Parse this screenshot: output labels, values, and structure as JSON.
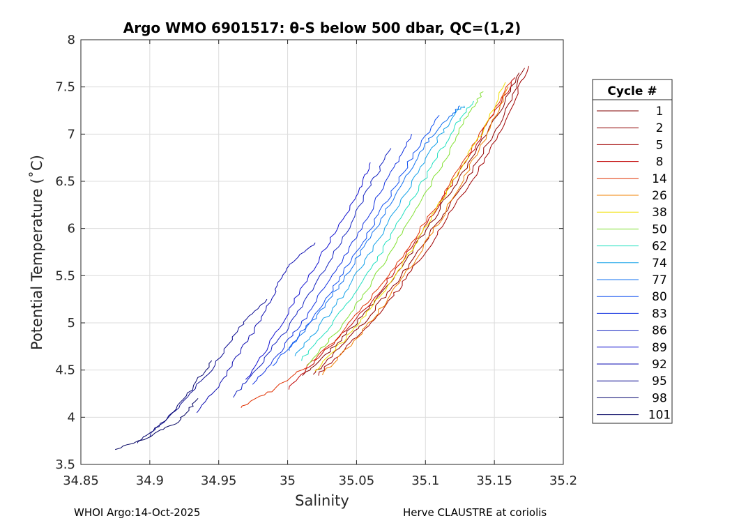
{
  "chart_data": {
    "type": "line",
    "title": "Argo WMO 6901517: θ-S below 500 dbar,  QC=(1,2)",
    "xlabel": "Salinity",
    "ylabel": "Potential Temperature (˚C)",
    "xlim": [
      34.85,
      35.2
    ],
    "ylim": [
      3.5,
      8
    ],
    "xticks": [
      34.85,
      34.9,
      34.95,
      35,
      35.05,
      35.1,
      35.15,
      35.2
    ],
    "xtick_labels": [
      "34.85",
      "34.9",
      "34.95",
      "35",
      "35.05",
      "35.1",
      "35.15",
      "35.2"
    ],
    "yticks": [
      3.5,
      4,
      4.5,
      5,
      5.5,
      6,
      6.5,
      7,
      7.5,
      8
    ],
    "ytick_labels": [
      "3.5",
      "4",
      "4.5",
      "5",
      "5.5",
      "6",
      "6.5",
      "7",
      "7.5",
      "8"
    ],
    "grid": true,
    "legend": {
      "title": "Cycle #",
      "placement": "outside-right",
      "entries": [
        {
          "label": "1",
          "color": "#800000"
        },
        {
          "label": "2",
          "color": "#8f0000"
        },
        {
          "label": "5",
          "color": "#a00000"
        },
        {
          "label": "8",
          "color": "#c00000"
        },
        {
          "label": "14",
          "color": "#e03000"
        },
        {
          "label": "26",
          "color": "#f08000"
        },
        {
          "label": "38",
          "color": "#f0e000"
        },
        {
          "label": "50",
          "color": "#80e030"
        },
        {
          "label": "62",
          "color": "#20e0c0"
        },
        {
          "label": "74",
          "color": "#10a0e8"
        },
        {
          "label": "77",
          "color": "#1070f0"
        },
        {
          "label": "80",
          "color": "#1050f0"
        },
        {
          "label": "83",
          "color": "#1030e0"
        },
        {
          "label": "86",
          "color": "#1020c0"
        },
        {
          "label": "89",
          "color": "#1010d0"
        },
        {
          "label": "92",
          "color": "#0a0ab0"
        },
        {
          "label": "95",
          "color": "#0a0a90"
        },
        {
          "label": "98",
          "color": "#050570"
        },
        {
          "label": "101",
          "color": "#000060"
        }
      ]
    },
    "series": [
      {
        "name": "1",
        "x": [
          35.012,
          35.03,
          35.05,
          35.07,
          35.09,
          35.11,
          35.13,
          35.15,
          35.168
        ],
        "y": [
          4.45,
          4.7,
          5.0,
          5.35,
          5.75,
          6.2,
          6.65,
          7.15,
          7.65
        ]
      },
      {
        "name": "2",
        "x": [
          35.018,
          35.035,
          35.055,
          35.075,
          35.095,
          35.115,
          35.135,
          35.155,
          35.172
        ],
        "y": [
          4.45,
          4.7,
          5.0,
          5.35,
          5.75,
          6.2,
          6.65,
          7.15,
          7.7
        ]
      },
      {
        "name": "5",
        "x": [
          35.022,
          35.04,
          35.06,
          35.08,
          35.1,
          35.12,
          35.14,
          35.158,
          35.175
        ],
        "y": [
          4.45,
          4.7,
          5.0,
          5.35,
          5.75,
          6.2,
          6.65,
          7.15,
          7.72
        ]
      },
      {
        "name": "8",
        "x": [
          35.0,
          35.02,
          35.045,
          35.065,
          35.085,
          35.105,
          35.125,
          35.145,
          35.165
        ],
        "y": [
          4.3,
          4.6,
          4.95,
          5.3,
          5.7,
          6.15,
          6.6,
          7.1,
          7.6
        ]
      },
      {
        "name": "14",
        "x": [
          34.965,
          34.99,
          35.015,
          35.04,
          35.065,
          35.09,
          35.115,
          35.14,
          35.162
        ],
        "y": [
          4.1,
          4.3,
          4.55,
          4.9,
          5.35,
          5.85,
          6.4,
          7.0,
          7.55
        ]
      },
      {
        "name": "26",
        "x": [
          35.025,
          35.045,
          35.065,
          35.085,
          35.105,
          35.125,
          35.145,
          35.16
        ],
        "y": [
          4.45,
          4.75,
          5.1,
          5.5,
          5.95,
          6.45,
          7.0,
          7.5
        ]
      },
      {
        "name": "38",
        "x": [
          35.02,
          35.04,
          35.06,
          35.08,
          35.1,
          35.12,
          35.14,
          35.158
        ],
        "y": [
          4.5,
          4.8,
          5.15,
          5.55,
          6.0,
          6.5,
          7.0,
          7.55
        ]
      },
      {
        "name": "50",
        "x": [
          35.015,
          35.035,
          35.055,
          35.075,
          35.095,
          35.115,
          35.13,
          35.142
        ],
        "y": [
          4.55,
          4.9,
          5.3,
          5.75,
          6.25,
          6.75,
          7.2,
          7.45
        ]
      },
      {
        "name": "62",
        "x": [
          35.01,
          35.03,
          35.05,
          35.07,
          35.09,
          35.11,
          35.125,
          35.135
        ],
        "y": [
          4.6,
          4.95,
          5.35,
          5.8,
          6.3,
          6.8,
          7.15,
          7.35
        ]
      },
      {
        "name": "74",
        "x": [
          35.005,
          35.025,
          35.045,
          35.065,
          35.085,
          35.105,
          35.12,
          35.128
        ],
        "y": [
          4.65,
          5.0,
          5.4,
          5.85,
          6.35,
          6.85,
          7.2,
          7.3
        ]
      },
      {
        "name": "77",
        "x": [
          35.0,
          35.02,
          35.04,
          35.06,
          35.08,
          35.1,
          35.115,
          35.125
        ],
        "y": [
          4.7,
          5.05,
          5.45,
          5.9,
          6.4,
          6.9,
          7.15,
          7.3
        ]
      },
      {
        "name": "80",
        "x": [
          34.99,
          35.01,
          35.03,
          35.05,
          35.07,
          35.09,
          35.11
        ],
        "y": [
          4.55,
          4.9,
          5.3,
          5.75,
          6.25,
          6.75,
          7.2
        ]
      },
      {
        "name": "83",
        "x": [
          34.975,
          34.995,
          35.015,
          35.035,
          35.055,
          35.075,
          35.09
        ],
        "y": [
          4.35,
          4.7,
          5.1,
          5.55,
          6.05,
          6.6,
          7.0
        ]
      },
      {
        "name": "86",
        "x": [
          34.96,
          34.98,
          35.0,
          35.02,
          35.04,
          35.06,
          35.075
        ],
        "y": [
          4.2,
          4.55,
          4.95,
          5.4,
          5.9,
          6.45,
          6.85
        ]
      },
      {
        "name": "89",
        "x": [
          34.97,
          34.99,
          35.01,
          35.03,
          35.05,
          35.06
        ],
        "y": [
          4.4,
          4.85,
          5.35,
          5.85,
          6.35,
          6.7
        ]
      },
      {
        "name": "92",
        "x": [
          34.935,
          34.955,
          34.975,
          34.99,
          35.0,
          35.02
        ],
        "y": [
          4.05,
          4.45,
          4.9,
          5.3,
          5.6,
          5.85
        ]
      },
      {
        "name": "95",
        "x": [
          34.9,
          34.92,
          34.945,
          34.965,
          34.985
        ],
        "y": [
          3.8,
          4.1,
          4.5,
          4.95,
          5.25
        ]
      },
      {
        "name": "98",
        "x": [
          34.89,
          34.91,
          34.93,
          34.945
        ],
        "y": [
          3.72,
          3.95,
          4.3,
          4.6
        ]
      },
      {
        "name": "101",
        "x": [
          34.876,
          34.9,
          34.92,
          34.935
        ],
        "y": [
          3.66,
          3.8,
          3.95,
          4.2
        ]
      }
    ]
  },
  "footer": {
    "left": "WHOI Argo:14-Oct-2025",
    "right": "Herve CLAUSTRE at coriolis"
  }
}
